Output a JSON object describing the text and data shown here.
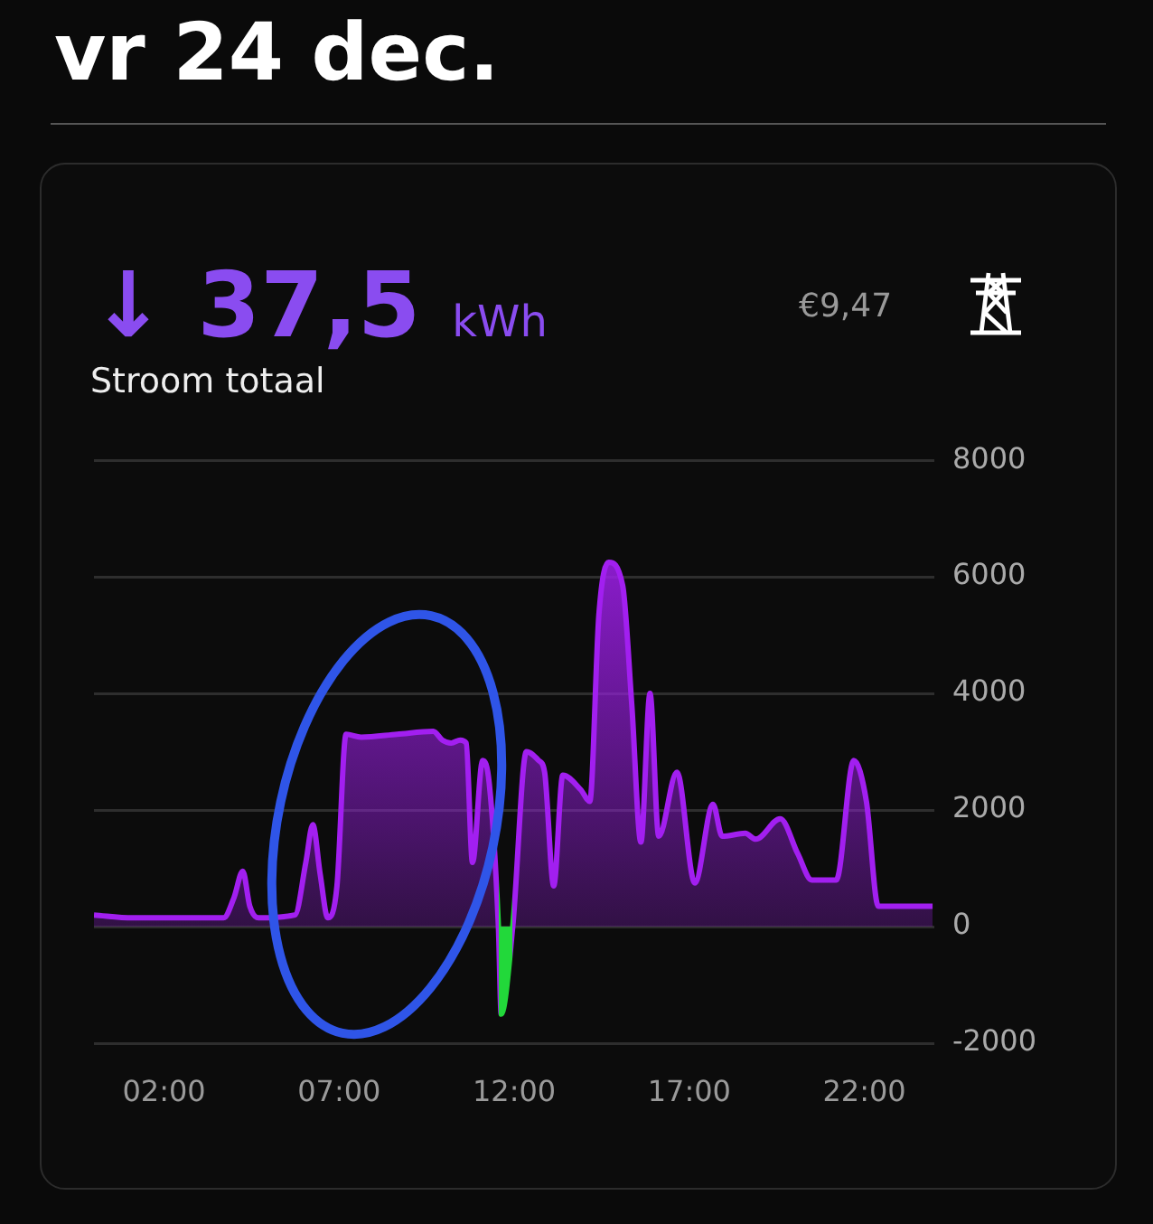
{
  "chart_data": {
    "type": "area",
    "title": "vr 24 dec.",
    "subtitle": "Stroom totaal",
    "annotations": [
      "↓ 37,5 kWh",
      "€9,47"
    ],
    "x": [
      0,
      1.1,
      3.7,
      4.0,
      4.25,
      4.45,
      4.7,
      5.74,
      6.05,
      6.25,
      6.46,
      6.68,
      6.94,
      7.2,
      7.63,
      8.66,
      9.69,
      9.95,
      10.2,
      10.46,
      10.63,
      10.81,
      11.1,
      11.29,
      11.55,
      11.63,
      11.96,
      12.35,
      12.7,
      12.87,
      13.13,
      13.39,
      13.9,
      14.16,
      14.42,
      14.7,
      15.1,
      15.36,
      15.62,
      15.88,
      16.13,
      16.65,
      17.16,
      17.68,
      17.94,
      18.6,
      18.9,
      19.6,
      20.1,
      20.5,
      21.2,
      21.7,
      22.06,
      22.4,
      23.95
    ],
    "values": [
      200,
      150,
      150,
      500,
      950,
      350,
      150,
      200,
      1100,
      1750,
      900,
      150,
      700,
      3300,
      3250,
      3300,
      3350,
      3200,
      3150,
      3200,
      3150,
      1100,
      2850,
      2450,
      0,
      -1500,
      0,
      3000,
      2850,
      2650,
      700,
      2600,
      2350,
      2150,
      5350,
      6250,
      5850,
      3800,
      1450,
      4000,
      1550,
      2650,
      750,
      2100,
      1550,
      1600,
      1500,
      1850,
      1250,
      800,
      800,
      2850,
      2150,
      350,
      350
    ],
    "color": "#a21ff0",
    "colors": [
      "#a21ff0",
      "#a21ff0",
      "#a21ff0",
      "#a21ff0",
      "#a21ff0",
      "#a21ff0",
      "#a21ff0",
      "#a21ff0",
      "#a21ff0",
      "#a21ff0",
      "#a21ff0",
      "#a21ff0",
      "#a21ff0",
      "#a21ff0",
      "#a21ff0",
      "#a21ff0",
      "#a21ff0",
      "#a21ff0",
      "#a21ff0",
      "#a21ff0",
      "#a21ff0",
      "#a21ff0",
      "#a21ff0",
      "#a21ff0",
      "#a21ff0",
      "#22d83a",
      "#a21ff0",
      "#a21ff0",
      "#a21ff0",
      "#a21ff0",
      "#a21ff0",
      "#a21ff0",
      "#a21ff0",
      "#a21ff0",
      "#a21ff0",
      "#a21ff0",
      "#a21ff0",
      "#a21ff0",
      "#a21ff0",
      "#a21ff0",
      "#a21ff0",
      "#a21ff0",
      "#a21ff0",
      "#a21ff0",
      "#a21ff0",
      "#a21ff0",
      "#a21ff0",
      "#a21ff0",
      "#a21ff0",
      "#a21ff0",
      "#a21ff0",
      "#a21ff0",
      "#a21ff0",
      "#a21ff0",
      "#a21ff0"
    ],
    "xlim": [
      0,
      24
    ],
    "xticks": [
      {
        "value": 2,
        "label": "02:00"
      },
      {
        "value": 7,
        "label": "07:00"
      },
      {
        "value": 12,
        "label": "12:00"
      },
      {
        "value": 17,
        "label": "17:00"
      },
      {
        "value": 22,
        "label": "22:00"
      }
    ],
    "ylim": [
      -2000,
      8000
    ],
    "yticks": [
      -2000,
      0,
      2000,
      4000,
      6000,
      8000
    ],
    "grid": "y",
    "legend": false,
    "marker": "none",
    "line_style": "solid"
  }
}
